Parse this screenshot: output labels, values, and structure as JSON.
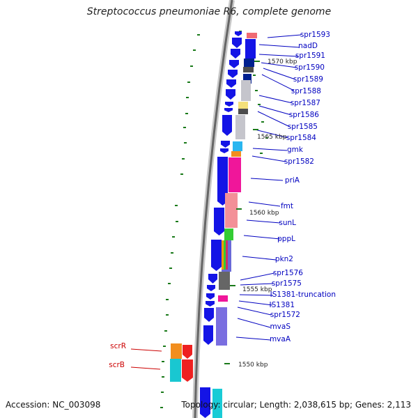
{
  "title": "Streptococcus pneumoniae R6, complete genome",
  "footer": {
    "accession": "Accession: NC_003098",
    "topology": "Topology: circular; Length: 2,038,615 bp; Genes: 2,113"
  },
  "colors": {
    "forward_gene": "#1414e6",
    "label": "#0000c0",
    "label_rna": "#cc0000",
    "tick": "#1a7a1a",
    "backbone": "#777777"
  },
  "ruler": [
    {
      "label": "1570 kbp"
    },
    {
      "label": "1565 kbp"
    },
    {
      "label": "1560 kbp"
    },
    {
      "label": "1555 kbp"
    },
    {
      "label": "1550 kbp"
    }
  ],
  "gene_labels": [
    {
      "name": "spr1593",
      "color": "#0000c0"
    },
    {
      "name": "nadD",
      "color": "#0000c0"
    },
    {
      "name": "spr1591",
      "color": "#0000c0"
    },
    {
      "name": "spr1590",
      "color": "#0000c0"
    },
    {
      "name": "spr1589",
      "color": "#0000c0"
    },
    {
      "name": "spr1588",
      "color": "#0000c0"
    },
    {
      "name": "spr1587",
      "color": "#0000c0"
    },
    {
      "name": "spr1586",
      "color": "#0000c0"
    },
    {
      "name": "spr1585",
      "color": "#0000c0"
    },
    {
      "name": "spr1584",
      "color": "#0000c0"
    },
    {
      "name": "gmk",
      "color": "#0000c0"
    },
    {
      "name": "spr1582",
      "color": "#0000c0"
    },
    {
      "name": "priA",
      "color": "#0000c0"
    },
    {
      "name": "fmt",
      "color": "#0000c0"
    },
    {
      "name": "sunL",
      "color": "#0000c0"
    },
    {
      "name": "pppL",
      "color": "#0000c0"
    },
    {
      "name": "pkn2",
      "color": "#0000c0"
    },
    {
      "name": "spr1576",
      "color": "#0000c0"
    },
    {
      "name": "spr1575",
      "color": "#0000c0"
    },
    {
      "name": "IS1381-truncation",
      "color": "#0000c0"
    },
    {
      "name": "IS1381",
      "color": "#0000c0"
    },
    {
      "name": "spr1572",
      "color": "#0000c0"
    },
    {
      "name": "mvaS",
      "color": "#0000c0"
    },
    {
      "name": "mvaA",
      "color": "#0000c0"
    },
    {
      "name": "scrR",
      "color": "#cc0000"
    },
    {
      "name": "scrB",
      "color": "#cc0000"
    }
  ]
}
